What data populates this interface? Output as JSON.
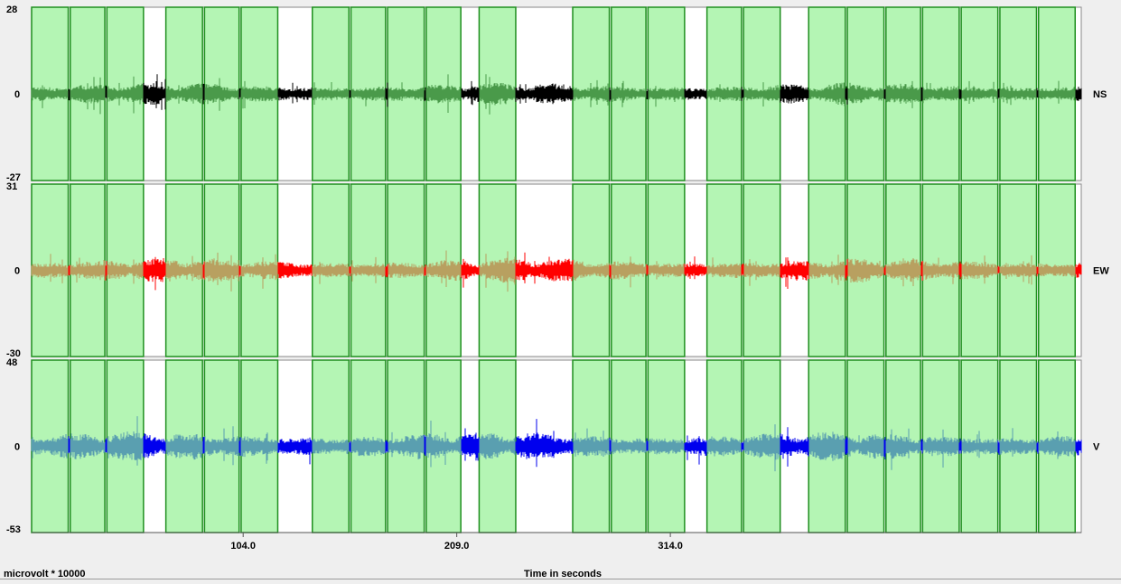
{
  "chart_data": {
    "type": "line",
    "title": "",
    "xlabel": "Time in seconds",
    "ylabel": "microvolt * 10000",
    "x_ticks": [
      104.0,
      209.0,
      314.0
    ],
    "x_tick_labels": [
      "104.0",
      "209.0",
      "314.0"
    ],
    "xlim": [
      0,
      516
    ],
    "grid": false,
    "windows": [
      [
        0,
        18
      ],
      [
        19,
        36
      ],
      [
        37,
        55
      ],
      [
        66,
        84
      ],
      [
        85,
        102
      ],
      [
        103,
        121
      ],
      [
        138,
        156
      ],
      [
        157,
        174
      ],
      [
        175,
        193
      ],
      [
        194,
        211
      ],
      [
        220,
        238
      ],
      [
        266,
        284
      ],
      [
        285,
        302
      ],
      [
        303,
        321
      ],
      [
        332,
        349
      ],
      [
        350,
        368
      ],
      [
        382,
        400
      ],
      [
        401,
        419
      ],
      [
        420,
        437
      ],
      [
        438,
        456
      ],
      [
        457,
        475
      ],
      [
        476,
        494
      ],
      [
        495,
        513
      ]
    ],
    "series": [
      {
        "name": "NS",
        "label": "NS",
        "ylim": [
          -27,
          28
        ],
        "y_labels": [
          "28",
          "0",
          "-27"
        ],
        "color": "#4a9a4a",
        "outside_color": "#000000",
        "amplitude": 9,
        "seed": 11
      },
      {
        "name": "EW",
        "label": "EW",
        "ylim": [
          -30,
          31
        ],
        "y_labels": [
          "31",
          "0",
          "-30"
        ],
        "color": "#b8a060",
        "outside_color": "#ff0000",
        "amplitude": 10,
        "seed": 23
      },
      {
        "name": "V",
        "label": "V",
        "ylim": [
          -53,
          48
        ],
        "y_labels": [
          "48",
          "0",
          "-53"
        ],
        "color": "#5a9fb0",
        "outside_color": "#0000ee",
        "amplitude": 12,
        "seed": 37
      }
    ]
  },
  "footer": {
    "units_label": "microvolt * 10000",
    "axis_title": "Time in seconds"
  },
  "colors": {
    "window_fill": "#b4f5b4",
    "window_border": "#1f8f1f",
    "background": "#ffffff"
  }
}
